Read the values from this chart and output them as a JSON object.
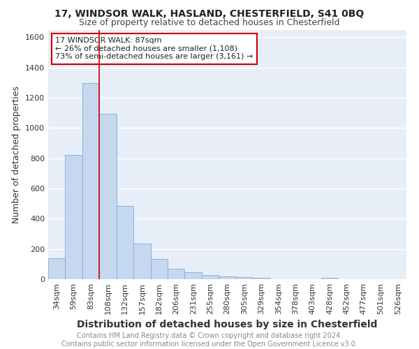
{
  "title": "17, WINDSOR WALK, HASLAND, CHESTERFIELD, S41 0BQ",
  "subtitle": "Size of property relative to detached houses in Chesterfield",
  "xlabel": "Distribution of detached houses by size in Chesterfield",
  "ylabel": "Number of detached properties",
  "categories": [
    "34sqm",
    "59sqm",
    "83sqm",
    "108sqm",
    "132sqm",
    "157sqm",
    "182sqm",
    "206sqm",
    "231sqm",
    "255sqm",
    "280sqm",
    "305sqm",
    "329sqm",
    "354sqm",
    "378sqm",
    "403sqm",
    "428sqm",
    "452sqm",
    "477sqm",
    "501sqm",
    "526sqm"
  ],
  "values": [
    140,
    820,
    1295,
    1095,
    485,
    235,
    135,
    70,
    47,
    30,
    20,
    13,
    10,
    0,
    0,
    0,
    10,
    0,
    0,
    0,
    0
  ],
  "bar_color": "#c5d8f0",
  "bar_edge_color": "#7aadd4",
  "vline_x": 2.5,
  "vline_color": "#cc0000",
  "annotation_text": "17 WINDSOR WALK: 87sqm\n← 26% of detached houses are smaller (1,108)\n73% of semi-detached houses are larger (3,161) →",
  "annotation_box_color": "#ffffff",
  "annotation_box_edge_color": "#cc0000",
  "ylim": [
    0,
    1650
  ],
  "yticks": [
    0,
    200,
    400,
    600,
    800,
    1000,
    1200,
    1400,
    1600
  ],
  "footer_text": "Contains HM Land Registry data © Crown copyright and database right 2024.\nContains public sector information licensed under the Open Government Licence v3.0.",
  "background_color": "#e8eef8",
  "grid_color": "#ffffff",
  "title_fontsize": 10,
  "subtitle_fontsize": 9,
  "xlabel_fontsize": 10,
  "ylabel_fontsize": 9,
  "tick_fontsize": 8,
  "annotation_fontsize": 8,
  "footer_fontsize": 7
}
